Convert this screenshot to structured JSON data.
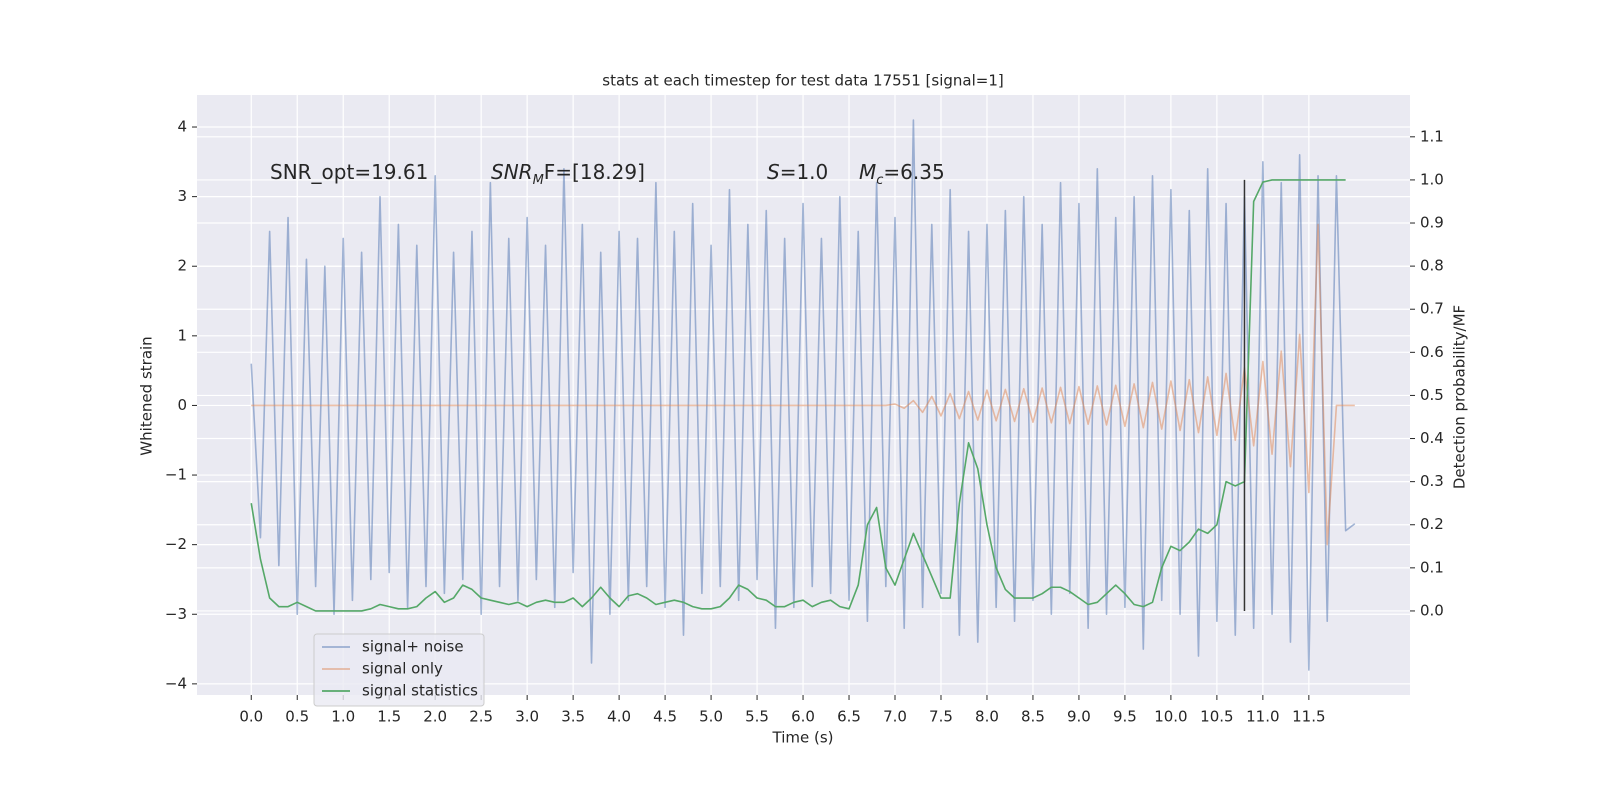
{
  "chart_data": {
    "type": "line",
    "title": "stats at each timestep for test data 17551 [signal=1]",
    "xlabel": "Time (s)",
    "ylabel": "Whitened strain",
    "y2label": "Detection probability/MF",
    "grid": true,
    "legend": "lower left",
    "background": "#eaeaf2",
    "xlim": [
      -0.59,
      12.6
    ],
    "ylim": [
      -4.16,
      4.46
    ],
    "y2lim": [
      -0.195,
      1.197
    ],
    "xticks": [
      {
        "value": 0,
        "label": "0.0"
      },
      0.5,
      {
        "value": 1,
        "label": "1.0"
      },
      1.5,
      {
        "value": 2,
        "label": "2.0"
      },
      2.5,
      {
        "value": 3,
        "label": "3.0"
      },
      3.5,
      {
        "value": 4,
        "label": "4.0"
      },
      4.5,
      {
        "value": 5,
        "label": "5.0"
      },
      5.5,
      {
        "value": 6,
        "label": "6.0"
      },
      6.5,
      {
        "value": 7,
        "label": "7.0"
      },
      7.5,
      {
        "value": 8,
        "label": "8.0"
      },
      8.5,
      {
        "value": 9,
        "label": "9.0"
      },
      9.5,
      {
        "value": 10,
        "label": "10.0"
      },
      10.5,
      {
        "value": 11,
        "label": "11.0"
      },
      11.5
    ],
    "yticks": [
      {
        "value": -4,
        "label": "−4"
      },
      {
        "value": -3,
        "label": "−3"
      },
      {
        "value": -2,
        "label": "−2"
      },
      {
        "value": -1,
        "label": "−1"
      },
      0,
      1,
      2,
      3,
      4
    ],
    "y2ticks": [
      {
        "value": 0,
        "label": "0.0"
      },
      0.1,
      0.2,
      0.3,
      0.4,
      0.5,
      0.6,
      0.7,
      0.8,
      0.9,
      {
        "value": 1,
        "label": "1.0"
      },
      1.1
    ],
    "x": [
      0,
      0.1,
      0.2,
      0.3,
      0.4,
      0.5,
      0.6,
      0.7,
      0.8,
      0.9,
      1,
      1.1,
      1.2,
      1.3,
      1.4,
      1.5,
      1.6,
      1.7,
      1.8,
      1.9,
      2,
      2.1,
      2.2,
      2.3,
      2.4,
      2.5,
      2.6,
      2.7,
      2.8,
      2.9,
      3,
      3.1,
      3.2,
      3.3,
      3.4,
      3.5,
      3.6,
      3.7,
      3.8,
      3.9,
      4,
      4.1,
      4.2,
      4.3,
      4.4,
      4.5,
      4.6,
      4.7,
      4.8,
      4.9,
      5,
      5.1,
      5.2,
      5.3,
      5.4,
      5.5,
      5.6,
      5.7,
      5.8,
      5.9,
      6,
      6.1,
      6.2,
      6.3,
      6.4,
      6.5,
      6.6,
      6.7,
      6.8,
      6.9,
      7,
      7.1,
      7.2,
      7.3,
      7.4,
      7.5,
      7.6,
      7.7,
      7.8,
      7.9,
      8,
      8.1,
      8.2,
      8.3,
      8.4,
      8.5,
      8.6,
      8.7,
      8.8,
      8.9,
      9,
      9.1,
      9.2,
      9.3,
      9.4,
      9.5,
      9.6,
      9.7,
      9.8,
      9.9,
      10,
      10.1,
      10.2,
      10.3,
      10.4,
      10.5,
      10.6,
      10.7,
      10.8,
      10.9,
      11,
      11.1,
      11.2,
      11.3,
      11.4,
      11.5,
      11.6,
      11.7,
      11.8,
      11.9,
      12
    ],
    "series": [
      {
        "name": "signal+ noise",
        "color": "#4c72b0",
        "opacity": 0.5,
        "values": [
          0.6,
          -1.9,
          2.5,
          -2.3,
          2.7,
          -3.0,
          2.1,
          -2.6,
          2.0,
          -3.0,
          2.4,
          -2.8,
          2.2,
          -2.5,
          3.0,
          -2.4,
          2.6,
          -2.9,
          2.3,
          -2.6,
          3.3,
          -2.7,
          2.2,
          -2.5,
          2.5,
          -3.0,
          3.2,
          -2.6,
          2.4,
          -2.8,
          2.7,
          -2.5,
          2.3,
          -2.9,
          3.4,
          -2.4,
          2.6,
          -3.7,
          2.2,
          -3.0,
          2.5,
          -2.8,
          2.4,
          -2.6,
          3.2,
          -2.9,
          2.5,
          -3.3,
          2.9,
          -2.7,
          2.3,
          -2.6,
          3.1,
          -2.8,
          2.6,
          -2.5,
          2.8,
          -3.2,
          2.4,
          -2.9,
          2.9,
          -2.6,
          2.4,
          -2.7,
          3.0,
          -2.8,
          2.5,
          -3.1,
          3.2,
          -2.6,
          2.7,
          -3.2,
          4.1,
          -2.9,
          2.6,
          -2.7,
          3.1,
          -3.3,
          2.5,
          -3.4,
          2.6,
          -2.9,
          2.8,
          -3.1,
          3.0,
          -2.8,
          2.6,
          -3.0,
          3.2,
          -2.7,
          2.9,
          -3.2,
          3.4,
          -3.0,
          2.7,
          -2.9,
          3.0,
          -3.5,
          3.3,
          -2.8,
          3.1,
          -3.0,
          2.8,
          -3.6,
          3.4,
          -3.1,
          2.9,
          -3.3,
          3.0,
          -3.2,
          3.5,
          -3.0,
          3.2,
          -3.4,
          3.6,
          -3.8,
          3.3,
          -3.1,
          3.3,
          -1.8,
          -1.7
        ]
      },
      {
        "name": "signal only",
        "color": "#dd8452",
        "opacity": 0.5,
        "values": [
          0,
          0,
          0,
          0,
          0,
          0,
          0,
          0,
          0,
          0,
          0,
          0,
          0,
          0,
          0,
          0,
          0,
          0,
          0,
          0,
          0,
          0,
          0,
          0,
          0,
          0,
          0,
          0,
          0,
          0,
          0,
          0,
          0,
          0,
          0,
          0,
          0,
          0,
          0,
          0,
          0,
          0,
          0,
          0,
          0,
          0,
          0,
          0,
          0,
          0,
          0,
          0,
          0,
          0,
          0,
          0,
          0,
          0,
          0,
          0,
          0,
          0,
          0,
          0,
          0,
          0,
          0,
          0,
          0,
          0,
          0.02,
          -0.04,
          0.07,
          -0.1,
          0.13,
          -0.15,
          0.17,
          -0.19,
          0.2,
          -0.21,
          0.22,
          -0.22,
          0.23,
          -0.23,
          0.24,
          -0.24,
          0.25,
          -0.25,
          0.26,
          -0.26,
          0.27,
          -0.27,
          0.28,
          -0.28,
          0.29,
          -0.3,
          0.31,
          -0.32,
          0.33,
          -0.34,
          0.35,
          -0.36,
          0.37,
          -0.39,
          0.41,
          -0.43,
          0.46,
          -0.5,
          0.54,
          -0.58,
          0.63,
          -0.7,
          0.78,
          -0.88,
          1.02,
          -1.25,
          2.6,
          -2.0,
          0,
          0,
          0
        ]
      },
      {
        "name": "signal statistics",
        "color": "#55a868",
        "opacity": 1,
        "axis": "y2",
        "values": [
          0.25,
          0.12,
          0.03,
          0.01,
          0.01,
          0.02,
          0.01,
          0,
          0,
          0,
          0,
          0,
          0,
          0.005,
          0.015,
          0.01,
          0.005,
          0.005,
          0.01,
          0.03,
          0.045,
          0.02,
          0.03,
          0.06,
          0.05,
          0.03,
          0.025,
          0.02,
          0.015,
          0.02,
          0.01,
          0.02,
          0.025,
          0.02,
          0.02,
          0.03,
          0.01,
          0.03,
          0.055,
          0.03,
          0.01,
          0.035,
          0.04,
          0.03,
          0.015,
          0.02,
          0.025,
          0.02,
          0.01,
          0.005,
          0.005,
          0.01,
          0.03,
          0.06,
          0.05,
          0.03,
          0.025,
          0.01,
          0.01,
          0.02,
          0.025,
          0.01,
          0.02,
          0.025,
          0.01,
          0.005,
          0.06,
          0.2,
          0.24,
          0.1,
          0.06,
          0.12,
          0.18,
          0.13,
          0.08,
          0.03,
          0.03,
          0.25,
          0.39,
          0.33,
          0.2,
          0.1,
          0.05,
          0.03,
          0.03,
          0.03,
          0.04,
          0.055,
          0.055,
          0.045,
          0.03,
          0.015,
          0.02,
          0.04,
          0.06,
          0.04,
          0.015,
          0.01,
          0.02,
          0.1,
          0.15,
          0.14,
          0.16,
          0.19,
          0.18,
          0.2,
          0.3,
          0.29,
          0.3,
          0.95,
          0.995,
          1.0,
          1.0,
          1.0,
          1.0,
          1.0,
          1.0,
          1.0,
          1.0,
          1.0,
          null
        ]
      }
    ],
    "vline": {
      "x": 10.8,
      "y2": [
        0,
        1
      ],
      "color": "#333333"
    },
    "annotations": [
      {
        "parts": [
          {
            "text": "SNR_opt=19.61"
          }
        ]
      },
      {
        "parts": [
          {
            "text": "SNR",
            "style": "italic"
          },
          {
            "text": "M",
            "style": "italic-sub"
          },
          {
            "text": "F=[18.29]"
          }
        ]
      },
      {
        "parts": [
          {
            "text": "S",
            "style": "italic"
          },
          {
            "text": "=1.0"
          }
        ]
      },
      {
        "parts": [
          {
            "text": "M",
            "style": "italic"
          },
          {
            "text": "c",
            "style": "italic-sub"
          },
          {
            "text": "=6.35"
          }
        ]
      }
    ]
  }
}
